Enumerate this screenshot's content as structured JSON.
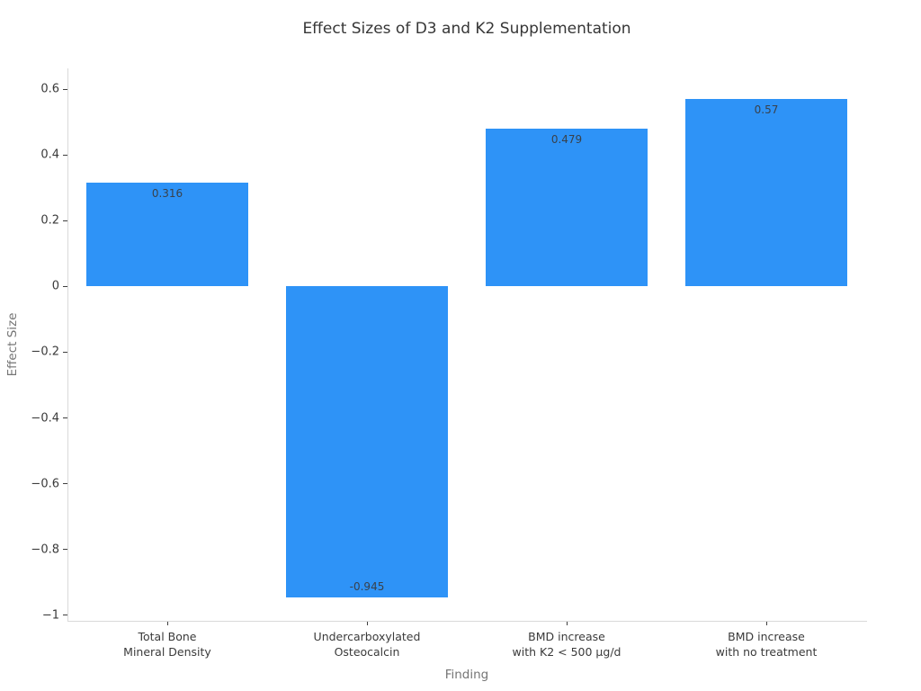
{
  "chart_data": {
    "type": "bar",
    "title": "Effect Sizes of D3 and K2 Supplementation",
    "xlabel": "Finding",
    "ylabel": "Effect Size",
    "categories": [
      "Total Bone\nMineral Density",
      "Undercarboxylated\nOsteocalcin",
      "BMD increase\nwith K2 < 500 μg/d",
      "BMD increase\nwith no treatment"
    ],
    "values": [
      0.316,
      -0.945,
      0.479,
      0.57
    ],
    "bar_labels": [
      "0.316",
      "-0.945",
      "0.479",
      "0.57"
    ],
    "bar_color": "#2E93F7",
    "yticks": [
      0.6,
      0.4,
      0.2,
      0,
      -0.2,
      -0.4,
      -0.6,
      -0.8,
      -1
    ],
    "ytick_labels": [
      "0.6",
      "0.4",
      "0.2",
      "0",
      "−0.2",
      "−0.4",
      "−0.6",
      "−0.8",
      "−1"
    ],
    "ylim": [
      -1.017,
      0.663
    ],
    "grid": false,
    "legend": null,
    "spine_color": "#d9d9d9",
    "tick_color": "#3f3f3f"
  }
}
